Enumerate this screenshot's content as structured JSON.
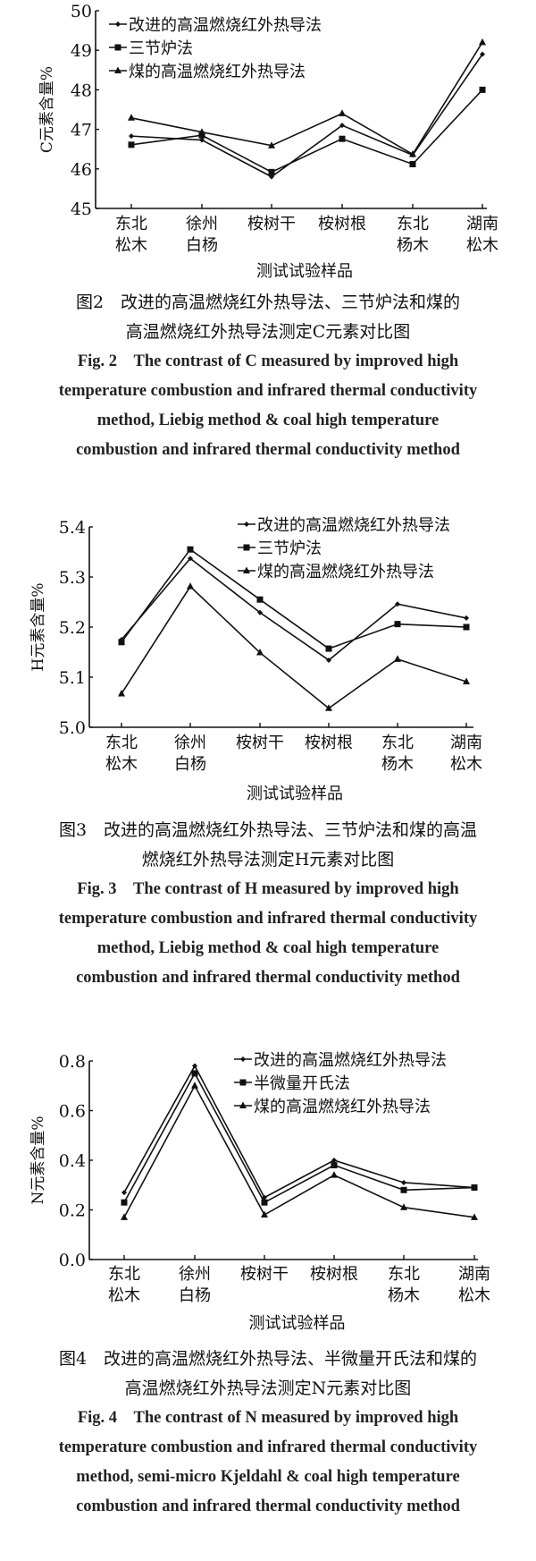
{
  "chart_data": [
    {
      "type": "line",
      "ylabel": "C元素含量%",
      "xlabel": "测试试验样品",
      "ylim": [
        45,
        50
      ],
      "yticks": [
        "45",
        "46",
        "47",
        "48",
        "49",
        "50"
      ],
      "categories": [
        "东北\n松木",
        "徐州\n白杨",
        "桉树干",
        "桉树根",
        "东北\n杨木",
        "湖南\n松木"
      ],
      "legend_placement": "top-left",
      "series": [
        {
          "name": "改进的高温燃烧红外热导法",
          "marker": "diamond",
          "values": [
            46.83,
            46.73,
            45.8,
            47.1,
            46.35,
            48.9
          ]
        },
        {
          "name": "三节炉法",
          "marker": "square",
          "values": [
            46.61,
            46.85,
            45.92,
            46.76,
            46.12,
            48.0
          ]
        },
        {
          "name": "煤的高温燃烧红外热导法",
          "marker": "triangle",
          "values": [
            47.29,
            46.93,
            46.59,
            47.4,
            46.37,
            49.2
          ]
        }
      ],
      "caption_zh": [
        "图2　改进的高温燃烧红外热导法、三节炉法和煤的",
        "高温燃烧红外热导法测定C元素对比图"
      ],
      "caption_en": [
        "Fig. 2　The contrast of C measured by  improved high",
        "temperature combustion and infrared thermal conductivity",
        "method, Liebig method  & coal high temperature",
        "combustion and infrared thermal conductivity method"
      ]
    },
    {
      "type": "line",
      "ylabel": "H元素含量%",
      "xlabel": "测试试验样品",
      "ylim": [
        5.0,
        5.4
      ],
      "yticks": [
        "5.0",
        "5.1",
        "5.2",
        "5.3",
        "5.4"
      ],
      "categories": [
        "东北\n松木",
        "徐州\n白杨",
        "桉树干",
        "桉树根",
        "东北\n杨木",
        "湖南\n松木"
      ],
      "legend_placement": "top-right",
      "series": [
        {
          "name": "改进的高温燃烧红外热导法",
          "marker": "diamond",
          "values": [
            5.175,
            5.337,
            5.229,
            5.134,
            5.246,
            5.218
          ]
        },
        {
          "name": "三节炉法",
          "marker": "square",
          "values": [
            5.17,
            5.355,
            5.255,
            5.157,
            5.206,
            5.2
          ]
        },
        {
          "name": "煤的高温燃烧红外热导法",
          "marker": "triangle",
          "values": [
            5.067,
            5.281,
            5.149,
            5.038,
            5.136,
            5.091
          ]
        }
      ],
      "caption_zh": [
        "图3　改进的高温燃烧红外热导法、三节炉法和煤的高温",
        "燃烧红外热导法测定H元素对比图"
      ],
      "caption_en": [
        "Fig. 3　The contrast of H measured by  improved high",
        "temperature combustion and infrared thermal conductivity",
        "method, Liebig method  & coal high temperature",
        "combustion and infrared thermal conductivity method"
      ]
    },
    {
      "type": "line",
      "ylabel": "N元素含量%",
      "xlabel": "测试试验样品",
      "ylim": [
        0.0,
        0.8
      ],
      "yticks": [
        "0.0",
        "0.2",
        "0.4",
        "0.6",
        "0.8"
      ],
      "categories": [
        "东北\n松木",
        "徐州\n白杨",
        "桉树干",
        "桉树根",
        "东北\n杨木",
        "湖南\n松木"
      ],
      "legend_placement": "top-right",
      "series": [
        {
          "name": "改进的高温燃烧红外热导法",
          "marker": "diamond",
          "values": [
            0.27,
            0.78,
            0.25,
            0.4,
            0.31,
            0.29
          ]
        },
        {
          "name": "半微量开氏法",
          "marker": "square",
          "values": [
            0.23,
            0.75,
            0.23,
            0.38,
            0.28,
            0.29
          ]
        },
        {
          "name": "煤的高温燃烧红外热导法",
          "marker": "triangle",
          "values": [
            0.17,
            0.7,
            0.18,
            0.34,
            0.21,
            0.17
          ]
        }
      ],
      "caption_zh": [
        "图4　改进的高温燃烧红外热导法、半微量开氏法和煤的",
        "高温燃烧红外热导法测定N元素对比图"
      ],
      "caption_en": [
        "Fig. 4　The contrast of N measured by improved high",
        "temperature combustion and infrared thermal conductivity",
        "method, semi-micro Kjeldahl & coal high temperature",
        "combustion and infrared thermal conductivity method"
      ]
    }
  ],
  "colors": {
    "line": "#111111",
    "background": "#ffffff"
  }
}
